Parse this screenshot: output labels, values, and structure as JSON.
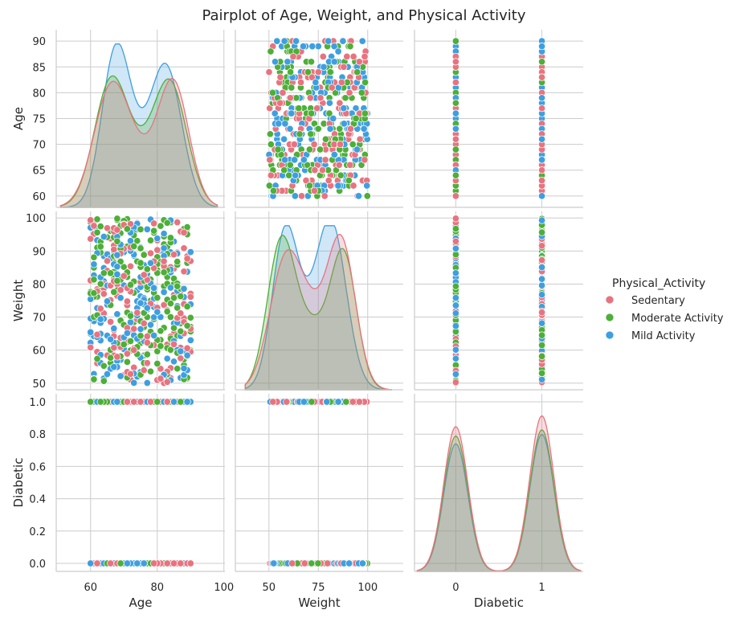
{
  "chart_data": {
    "type": "pairplot",
    "title": "Pairplot of Age, Weight, and Physical Activity",
    "variables": [
      "Age",
      "Weight",
      "Diabetic"
    ],
    "hue": "Physical_Activity",
    "legend": {
      "title": "Physical_Activity",
      "placement": "center-right",
      "entries": [
        {
          "name": "Sedentary",
          "color": "#e8737f"
        },
        {
          "name": "Moderate Activity",
          "color": "#4daf37"
        },
        {
          "name": "Mild Activity",
          "color": "#3e9fe0"
        }
      ]
    },
    "axes": {
      "Age": {
        "label": "Age",
        "range": [
          60,
          90
        ],
        "x_ticks": [
          60,
          80,
          100
        ],
        "y_ticks": [
          60,
          65,
          70,
          75,
          80,
          85,
          90
        ]
      },
      "Weight": {
        "label": "Weight",
        "range": [
          50,
          100
        ],
        "x_ticks": [
          50,
          75,
          100
        ],
        "y_ticks": [
          50,
          60,
          70,
          80,
          90,
          100
        ]
      },
      "Diabetic": {
        "label": "Diabetic",
        "range": [
          0,
          1
        ],
        "x_ticks": [
          0,
          1
        ],
        "y_ticks": [
          0.0,
          0.2,
          0.4,
          0.6,
          0.8,
          1.0
        ],
        "y_tick_labels": [
          "0.0",
          "0.2",
          "0.4",
          "0.6",
          "0.8",
          "1.0"
        ]
      }
    },
    "kde_description": {
      "Age": {
        "Sedentary": {
          "peaks": [
            66,
            85
          ]
        },
        "Moderate Activity": {
          "peaks": [
            67,
            83
          ]
        },
        "Mild Activity": {
          "peaks": [
            68,
            83
          ]
        }
      },
      "Weight": {
        "Sedentary": {
          "peaks": [
            60,
            87
          ]
        },
        "Moderate Activity": {
          "peaks": [
            57,
            88
          ]
        },
        "Mild Activity": {
          "peaks": [
            58,
            82
          ]
        }
      },
      "Diabetic": {
        "Sedentary": {
          "peaks": [
            0,
            1
          ]
        },
        "Moderate Activity": {
          "peaks": [
            0,
            1
          ]
        },
        "Mild Activity": {
          "peaks": [
            0,
            1
          ]
        }
      }
    },
    "grid": true
  }
}
